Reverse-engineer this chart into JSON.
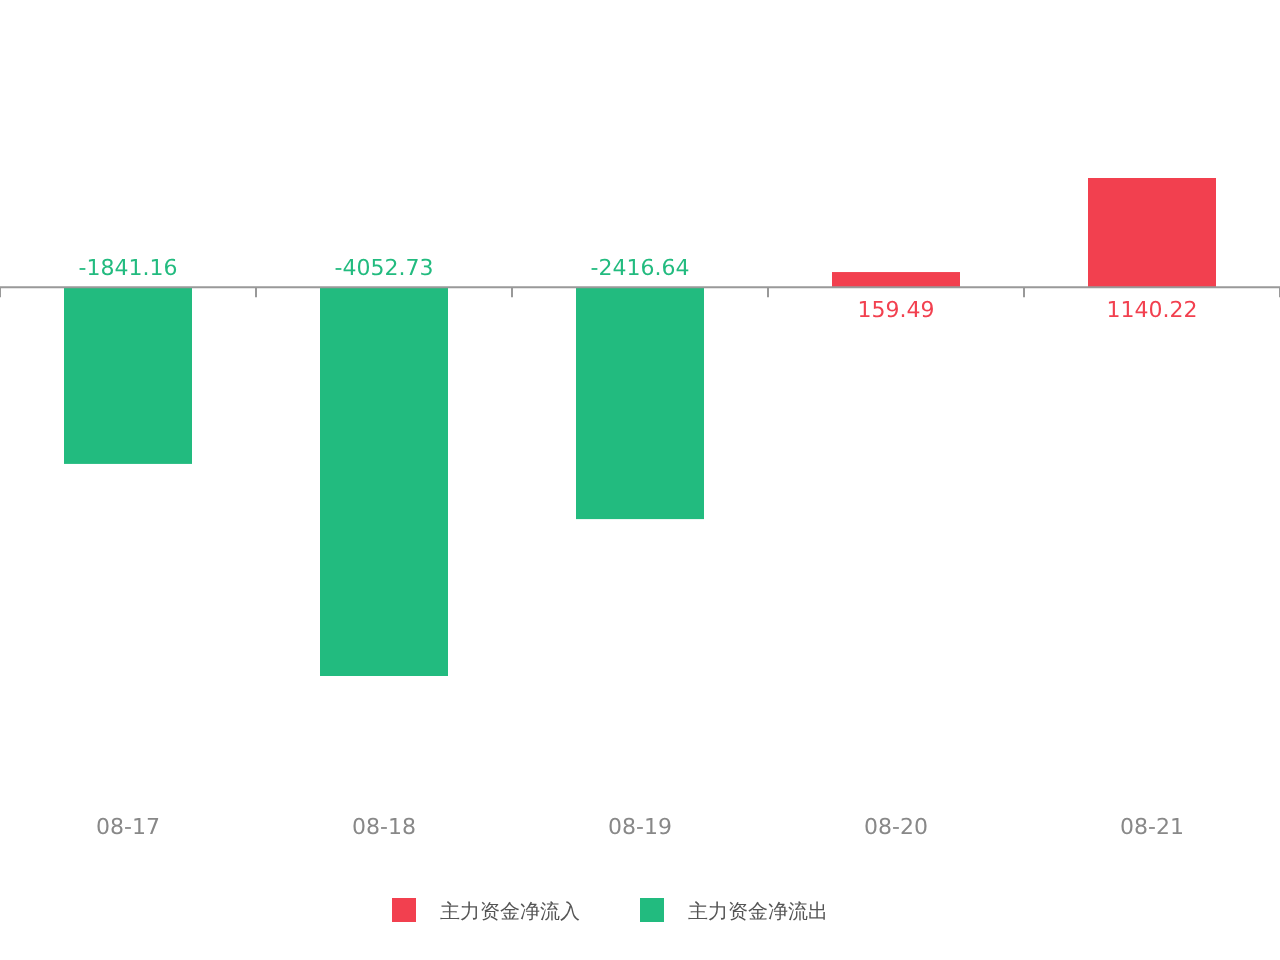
{
  "chart_data": {
    "type": "bar",
    "categories": [
      "08-17",
      "08-18",
      "08-19",
      "08-20",
      "08-21"
    ],
    "series": [
      {
        "name": "主力资金净流入",
        "color": "#f2404f",
        "values": [
          null,
          null,
          null,
          159.49,
          1140.22
        ]
      },
      {
        "name": "主力资金净流出",
        "color": "#22bb7f",
        "values": [
          -1841.16,
          -4052.73,
          -2416.64,
          null,
          null
        ]
      }
    ],
    "data_labels": true,
    "legend": "bottom"
  }
}
